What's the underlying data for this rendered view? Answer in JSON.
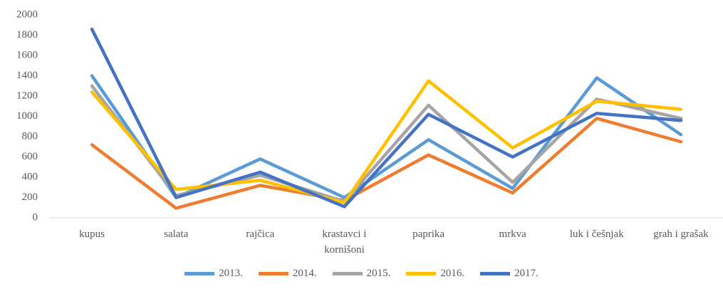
{
  "chart_data": {
    "type": "line",
    "categories": [
      "kupus",
      "salata",
      "rajčica",
      "krastavci i kornišoni",
      "paprika",
      "mrkva",
      "luk i češnjak",
      "grah i grašak"
    ],
    "series": [
      {
        "name": "2013.",
        "color": "#5b9bd5",
        "values": [
          1400,
          200,
          580,
          200,
          770,
          290,
          1380,
          820
        ]
      },
      {
        "name": "2014.",
        "color": "#ed7d31",
        "values": [
          720,
          95,
          320,
          170,
          620,
          245,
          980,
          750
        ]
      },
      {
        "name": "2015.",
        "color": "#a5a5a5",
        "values": [
          1300,
          220,
          420,
          160,
          1110,
          350,
          1170,
          980
        ]
      },
      {
        "name": "2016.",
        "color": "#ffc000",
        "values": [
          1240,
          280,
          370,
          150,
          1350,
          690,
          1150,
          1070
        ]
      },
      {
        "name": "2017.",
        "color": "#4472c4",
        "values": [
          1860,
          200,
          450,
          110,
          1020,
          600,
          1030,
          960
        ]
      }
    ],
    "ylim": [
      0,
      2000
    ],
    "yticks": [
      0,
      200,
      400,
      600,
      800,
      1000,
      1200,
      1400,
      1600,
      1800,
      2000
    ],
    "grid": false,
    "legend": "bottom"
  }
}
